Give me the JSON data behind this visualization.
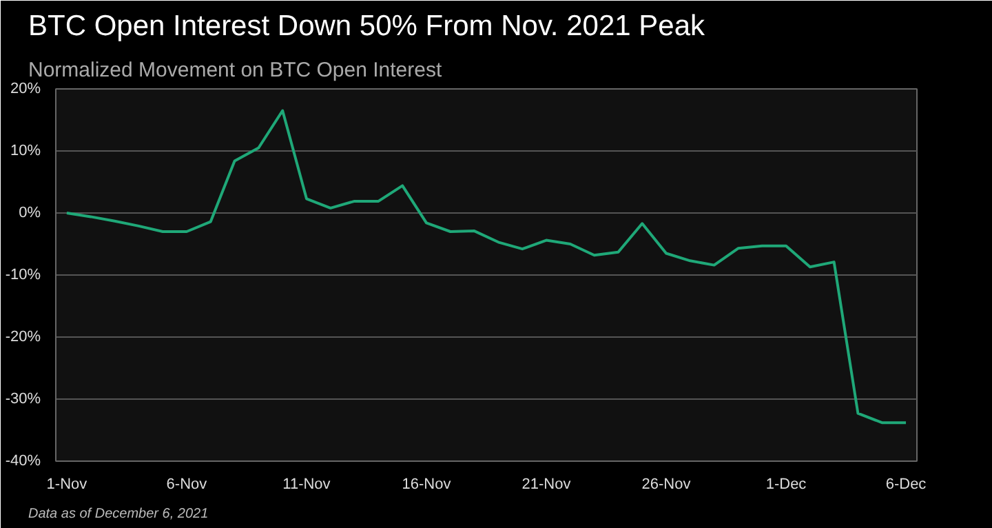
{
  "chart_data": {
    "type": "line",
    "title": "BTC Open Interest Down 50% From Nov. 2021 Peak",
    "subtitle": "Normalized Movement on BTC Open Interest",
    "annotations": [
      "Data as of December 6, 2021"
    ],
    "x": [
      "2021-11-01",
      "2021-11-02",
      "2021-11-03",
      "2021-11-04",
      "2021-11-05",
      "2021-11-06",
      "2021-11-07",
      "2021-11-08",
      "2021-11-09",
      "2021-11-10",
      "2021-11-11",
      "2021-11-12",
      "2021-11-13",
      "2021-11-14",
      "2021-11-15",
      "2021-11-16",
      "2021-11-17",
      "2021-11-18",
      "2021-11-19",
      "2021-11-20",
      "2021-11-21",
      "2021-11-22",
      "2021-11-23",
      "2021-11-24",
      "2021-11-25",
      "2021-11-26",
      "2021-11-27",
      "2021-11-28",
      "2021-11-29",
      "2021-11-30",
      "2021-12-01",
      "2021-12-02",
      "2021-12-03",
      "2021-12-04",
      "2021-12-05",
      "2021-12-06"
    ],
    "series": [
      {
        "color": "#1fa878",
        "values": [
          0,
          -0.6,
          -1.3,
          -2.1,
          -3.0,
          -3.0,
          -1.4,
          8.4,
          10.5,
          16.5,
          2.3,
          0.8,
          1.9,
          1.9,
          4.4,
          -1.6,
          -3.0,
          -2.9,
          -4.7,
          -5.8,
          -4.4,
          -5.0,
          -6.8,
          -6.3,
          -1.7,
          -6.5,
          -7.7,
          -8.4,
          -5.7,
          -5.3,
          -5.3,
          -8.7,
          -7.9,
          -32.3,
          -33.8,
          -33.8
        ]
      }
    ],
    "xlim": [
      "2021-10-31T13:00",
      "2021-12-06T11:00"
    ],
    "xticks": [
      {
        "value": "2021-11-01",
        "label": "1-Nov"
      },
      {
        "value": "2021-11-06",
        "label": "6-Nov"
      },
      {
        "value": "2021-11-11",
        "label": "11-Nov"
      },
      {
        "value": "2021-11-16",
        "label": "16-Nov"
      },
      {
        "value": "2021-11-21",
        "label": "21-Nov"
      },
      {
        "value": "2021-11-26",
        "label": "26-Nov"
      },
      {
        "value": "2021-12-01",
        "label": "1-Dec"
      },
      {
        "value": "2021-12-06",
        "label": "6-Dec"
      }
    ],
    "ylim": [
      -40,
      20
    ],
    "yticks": [
      {
        "value": -40,
        "label": "-40%"
      },
      {
        "value": -30,
        "label": "-30%"
      },
      {
        "value": -20,
        "label": "-20%"
      },
      {
        "value": -10,
        "label": "-10%"
      },
      {
        "value": 0,
        "label": "0%"
      },
      {
        "value": 10,
        "label": "10%"
      },
      {
        "value": 20,
        "label": "20%"
      }
    ],
    "grid": "y",
    "marker": "none",
    "line_style": "solid"
  }
}
